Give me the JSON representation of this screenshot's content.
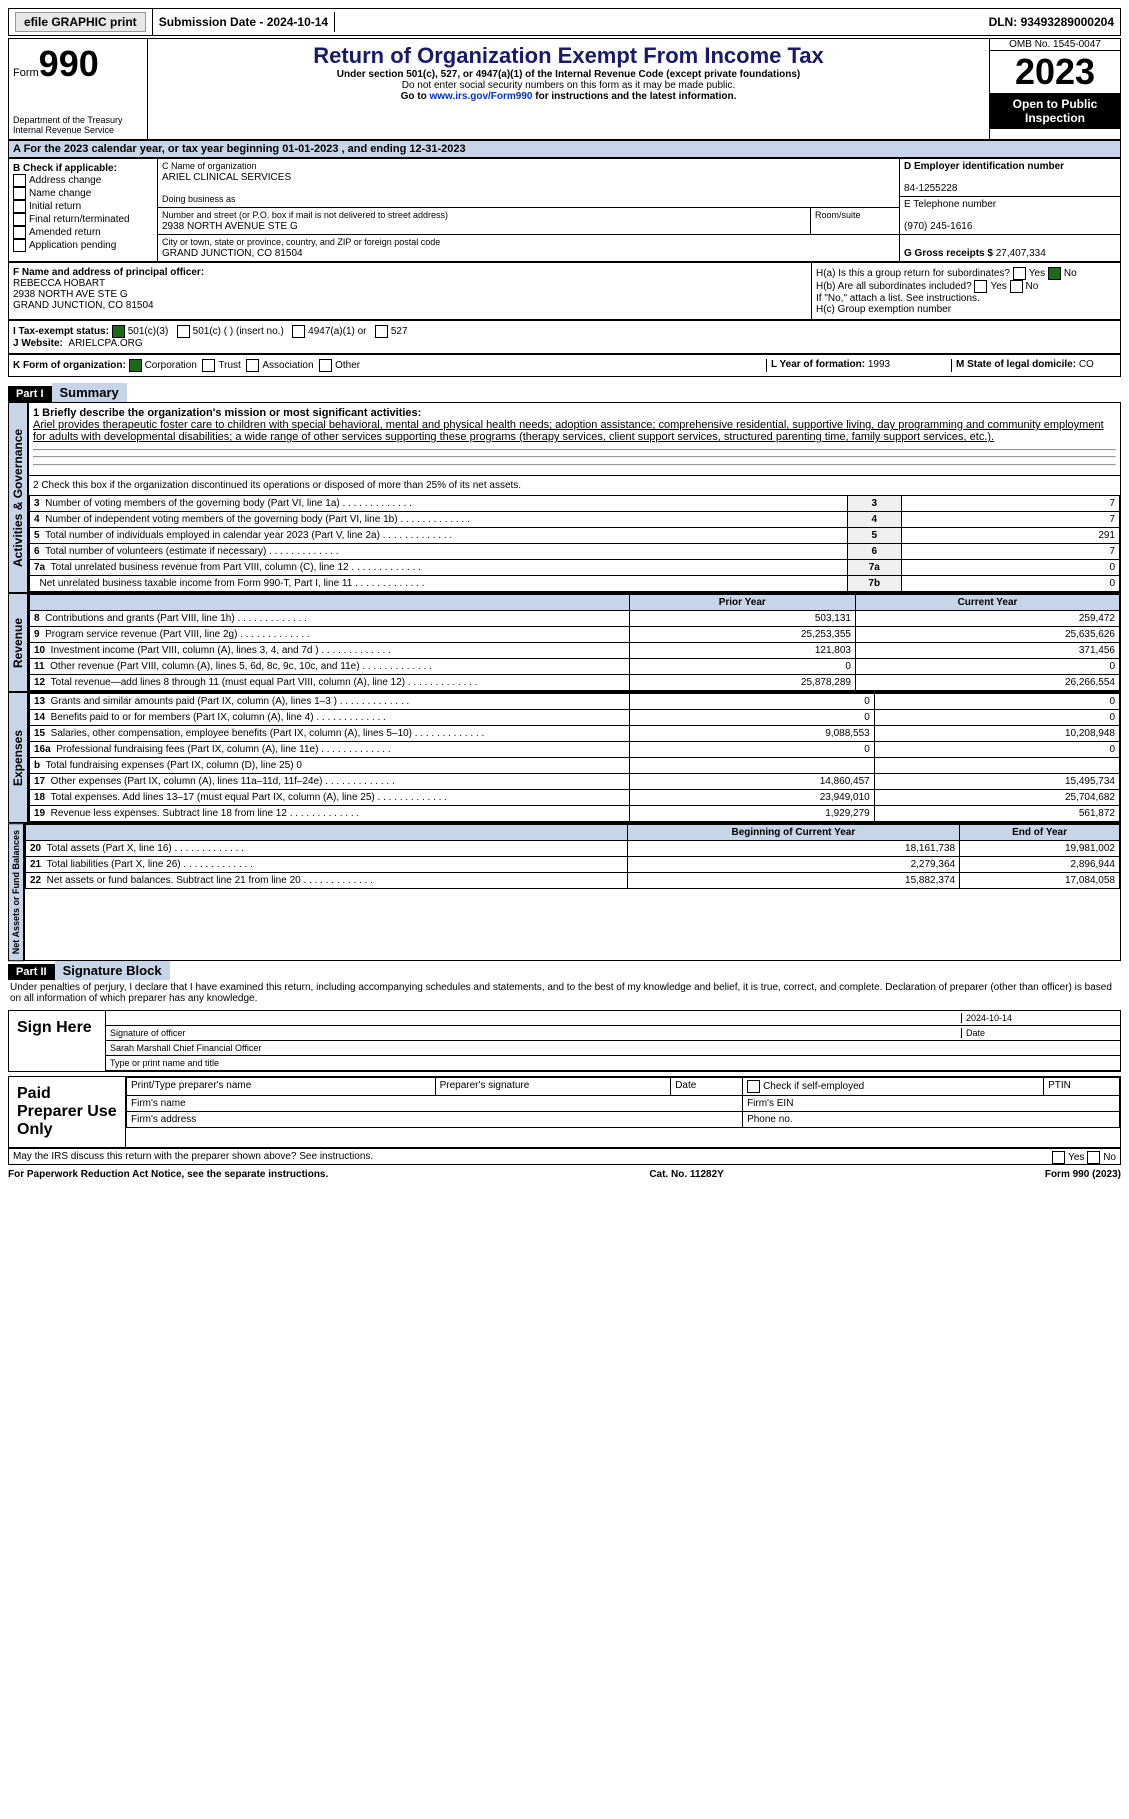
{
  "topbar": {
    "efile": "efile GRAPHIC print",
    "subdate_lbl": "Submission Date - ",
    "subdate": "2024-10-14",
    "dln_lbl": "DLN: ",
    "dln": "93493289000204"
  },
  "header": {
    "form_lbl": "Form",
    "form_no": "990",
    "dept": "Department of the Treasury",
    "irs": "Internal Revenue Service",
    "title": "Return of Organization Exempt From Income Tax",
    "sub1": "Under section 501(c), 527, or 4947(a)(1) of the Internal Revenue Code (except private foundations)",
    "sub2": "Do not enter social security numbers on this form as it may be made public.",
    "sub3": "Go to ",
    "sub3_link": "www.irs.gov/Form990",
    "sub3_b": " for instructions and the latest information.",
    "omb": "OMB No. 1545-0047",
    "year": "2023",
    "open": "Open to Public Inspection"
  },
  "cal": {
    "txt": "A   For the 2023 calendar year, or tax year beginning 01-01-2023    , and ending 12-31-2023"
  },
  "B": {
    "hdr": "B Check if applicable:",
    "items": [
      "Address change",
      "Name change",
      "Initial return",
      "Final return/terminated",
      "Amended return",
      "Application pending"
    ]
  },
  "C": {
    "name_lbl": "C Name of organization",
    "name": "ARIEL CLINICAL SERVICES",
    "dba_lbl": "Doing business as",
    "dba": "",
    "addr_lbl": "Number and street (or P.O. box if mail is not delivered to street address)",
    "room_lbl": "Room/suite",
    "addr": "2938 NORTH AVENUE STE G",
    "city_lbl": "City or town, state or province, country, and ZIP or foreign postal code",
    "city": "GRAND JUNCTION, CO  81504"
  },
  "D": {
    "ein_lbl": "D Employer identification number",
    "ein": "84-1255228",
    "tel_lbl": "E Telephone number",
    "tel": "(970) 245-1616",
    "gross_lbl": "G Gross receipts $ ",
    "gross": "27,407,334"
  },
  "F": {
    "lbl": "F  Name and address of principal officer:",
    "name": "REBECCA HOBART",
    "addr1": "2938 NORTH AVE STE G",
    "addr2": "GRAND JUNCTION, CO  81504"
  },
  "H": {
    "a": "H(a)  Is this a group return for subordinates?",
    "b": "H(b)  Are all subordinates included?",
    "bnote": "If \"No,\" attach a list. See instructions.",
    "c": "H(c)  Group exemption number",
    "yes": "Yes",
    "no": "No"
  },
  "I": {
    "lbl": "I    Tax-exempt status:",
    "c3": "501(c)(3)",
    "c": "501(c) (  ) (insert no.)",
    "a1": "4947(a)(1) or",
    "527": "527"
  },
  "J": {
    "lbl": "J   Website:",
    "val": "ARIELCPA.ORG"
  },
  "K": {
    "lbl": "K Form of organization:",
    "corp": "Corporation",
    "trust": "Trust",
    "assoc": "Association",
    "other": "Other"
  },
  "L": {
    "lbl": "L Year of formation: ",
    "val": "1993"
  },
  "M": {
    "lbl": "M State of legal domicile: ",
    "val": "CO"
  },
  "part1": {
    "bar": "Part I",
    "title": "Summary"
  },
  "ag": {
    "tab": "Activities & Governance",
    "l1": "1   Briefly describe the organization's mission or most significant activities:",
    "mission": "Ariel provides therapeutic foster care to children with special behavioral, mental and physical health needs; adoption assistance; comprehensive residential, supportive living, day programming and community employment for adults with developmental disabilities; a wide range of other services supporting these programs (therapy services, client support services, structured parenting time, family support services, etc.).",
    "l2": "2    Check this box        if the organization discontinued its operations or disposed of more than 25% of its net assets.",
    "rows": [
      {
        "n": "3",
        "t": "Number of voting members of the governing body (Part VI, line 1a)",
        "k": "3",
        "v": "7"
      },
      {
        "n": "4",
        "t": "Number of independent voting members of the governing body (Part VI, line 1b)",
        "k": "4",
        "v": "7"
      },
      {
        "n": "5",
        "t": "Total number of individuals employed in calendar year 2023 (Part V, line 2a)",
        "k": "5",
        "v": "291"
      },
      {
        "n": "6",
        "t": "Total number of volunteers (estimate if necessary)",
        "k": "6",
        "v": "7"
      },
      {
        "n": "7a",
        "t": "Total unrelated business revenue from Part VIII, column (C), line 12",
        "k": "7a",
        "v": "0"
      },
      {
        "n": "",
        "t": "Net unrelated business taxable income from Form 990-T, Part I, line 11",
        "k": "7b",
        "v": "0"
      }
    ]
  },
  "rev": {
    "tab": "Revenue",
    "h1": "Prior Year",
    "h2": "Current Year",
    "rows": [
      {
        "n": "8",
        "t": "Contributions and grants (Part VIII, line 1h)",
        "p": "503,131",
        "c": "259,472"
      },
      {
        "n": "9",
        "t": "Program service revenue (Part VIII, line 2g)",
        "p": "25,253,355",
        "c": "25,635,626"
      },
      {
        "n": "10",
        "t": "Investment income (Part VIII, column (A), lines 3, 4, and 7d )",
        "p": "121,803",
        "c": "371,456"
      },
      {
        "n": "11",
        "t": "Other revenue (Part VIII, column (A), lines 5, 6d, 8c, 9c, 10c, and 11e)",
        "p": "0",
        "c": "0"
      },
      {
        "n": "12",
        "t": "Total revenue—add lines 8 through 11 (must equal Part VIII, column (A), line 12)",
        "p": "25,878,289",
        "c": "26,266,554"
      }
    ]
  },
  "exp": {
    "tab": "Expenses",
    "rows": [
      {
        "n": "13",
        "t": "Grants and similar amounts paid (Part IX, column (A), lines 1–3 )",
        "p": "0",
        "c": "0"
      },
      {
        "n": "14",
        "t": "Benefits paid to or for members (Part IX, column (A), line 4)",
        "p": "0",
        "c": "0"
      },
      {
        "n": "15",
        "t": "Salaries, other compensation, employee benefits (Part IX, column (A), lines 5–10)",
        "p": "9,088,553",
        "c": "10,208,948"
      },
      {
        "n": "16a",
        "t": "Professional fundraising fees (Part IX, column (A), line 11e)",
        "p": "0",
        "c": "0"
      },
      {
        "n": "b",
        "t": "Total fundraising expenses (Part IX, column (D), line 25) 0",
        "p": "",
        "c": "",
        "gray": true
      },
      {
        "n": "17",
        "t": "Other expenses (Part IX, column (A), lines 11a–11d, 11f–24e)",
        "p": "14,860,457",
        "c": "15,495,734"
      },
      {
        "n": "18",
        "t": "Total expenses. Add lines 13–17 (must equal Part IX, column (A), line 25)",
        "p": "23,949,010",
        "c": "25,704,682"
      },
      {
        "n": "19",
        "t": "Revenue less expenses. Subtract line 18 from line 12",
        "p": "1,929,279",
        "c": "561,872"
      }
    ]
  },
  "na": {
    "tab": "Net Assets or Fund Balances",
    "h1": "Beginning of Current Year",
    "h2": "End of Year",
    "rows": [
      {
        "n": "20",
        "t": "Total assets (Part X, line 16)",
        "p": "18,161,738",
        "c": "19,981,002"
      },
      {
        "n": "21",
        "t": "Total liabilities (Part X, line 26)",
        "p": "2,279,364",
        "c": "2,896,944"
      },
      {
        "n": "22",
        "t": "Net assets or fund balances. Subtract line 21 from line 20",
        "p": "15,882,374",
        "c": "17,084,058"
      }
    ]
  },
  "part2": {
    "bar": "Part II",
    "title": "Signature Block",
    "decl": "Under penalties of perjury, I declare that I have examined this return, including accompanying schedules and statements, and to the best of my knowledge and belief, it is true, correct, and complete. Declaration of preparer (other than officer) is based on all information of which preparer has any knowledge."
  },
  "sign": {
    "here": "Sign Here",
    "date": "2024-10-14",
    "sig_lbl": "Signature of officer",
    "date_lbl": "Date",
    "officer": "Sarah Marshall Chief Financial Officer",
    "type_lbl": "Type or print name and title"
  },
  "paid": {
    "lbl": "Paid Preparer Use Only",
    "c1": "Print/Type preparer's name",
    "c2": "Preparer's signature",
    "c3": "Date",
    "c4": "Check        if self-employed",
    "c5": "PTIN",
    "f1": "Firm's name",
    "f2": "Firm's EIN",
    "f3": "Firm's address",
    "f4": "Phone no."
  },
  "discuss": {
    "txt": "May the IRS discuss this return with the preparer shown above? See instructions.",
    "yes": "Yes",
    "no": "No"
  },
  "foot": {
    "l": "For Paperwork Reduction Act Notice, see the separate instructions.",
    "c": "Cat. No. 11282Y",
    "r": "Form 990 (2023)"
  }
}
